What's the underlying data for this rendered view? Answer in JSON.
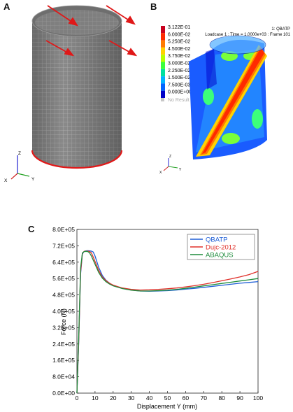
{
  "panels": {
    "a": {
      "letter": "A"
    },
    "b": {
      "letter": "B"
    },
    "c": {
      "letter": "C"
    }
  },
  "axes_triad": {
    "z": "Z",
    "x": "X",
    "y": "Y"
  },
  "contour": {
    "header_line1": "1: QBATP",
    "header_line2": "Loadcase 1 : Time = 1.0000e+03 : Frame 101",
    "levels": [
      "3.122E-01",
      "6.000E-02",
      "5.250E-02",
      "4.500E-02",
      "3.750E-02",
      "3.000E-02",
      "2.250E-02",
      "1.500E-02",
      "7.500E-03",
      "0.000E+00"
    ],
    "colors": [
      "#c8001e",
      "#ff2a00",
      "#ff7a00",
      "#ffd200",
      "#b8ff00",
      "#3cff3c",
      "#00e0a0",
      "#00b4ff",
      "#0064ff",
      "#0000c8"
    ],
    "no_result": "No Result"
  },
  "chart_data": {
    "type": "line",
    "xlabel": "Displacement Y (mm)",
    "ylabel": "Force (N)",
    "xlim": [
      0,
      100
    ],
    "ylim": [
      0,
      800000
    ],
    "x_ticks": [
      "0",
      "10",
      "20",
      "30",
      "40",
      "50",
      "60",
      "70",
      "80",
      "90",
      "100"
    ],
    "y_ticks": [
      "0.0E+00",
      "8.0E+04",
      "1.6E+05",
      "2.4E+05",
      "3.2E+05",
      "4.0E+05",
      "4.8E+05",
      "5.6E+05",
      "6.4E+05",
      "7.2E+05",
      "8.0E+05"
    ],
    "grid": false,
    "legend_position": "top-right",
    "series": [
      {
        "name": "QBATP",
        "color": "#1f5fd6",
        "x": [
          0,
          1,
          2,
          3,
          4,
          5,
          6,
          7,
          8,
          9,
          10,
          12,
          14,
          16,
          18,
          20,
          25,
          30,
          35,
          40,
          45,
          50,
          55,
          60,
          65,
          70,
          75,
          80,
          85,
          90,
          95,
          100
        ],
        "y": [
          0,
          250000,
          580000,
          680000,
          693000,
          695000,
          696000,
          695000,
          694000,
          690000,
          670000,
          615000,
          575000,
          552000,
          537000,
          527000,
          512000,
          504000,
          499000,
          498000,
          499000,
          501000,
          504000,
          508000,
          512000,
          517000,
          522000,
          527000,
          532000,
          537000,
          541000,
          545000
        ]
      },
      {
        "name": "Dujc-2012",
        "color": "#e0302a",
        "x": [
          0,
          1,
          2,
          3,
          4,
          5,
          6,
          7,
          8,
          9,
          10,
          12,
          14,
          16,
          18,
          20,
          25,
          30,
          35,
          40,
          45,
          50,
          55,
          60,
          65,
          70,
          75,
          80,
          85,
          90,
          95,
          100
        ],
        "y": [
          0,
          260000,
          590000,
          683000,
          693000,
          694000,
          694000,
          692000,
          685000,
          665000,
          643000,
          600000,
          568000,
          550000,
          537000,
          528000,
          514000,
          507000,
          504000,
          505000,
          507000,
          510000,
          514000,
          519000,
          525000,
          532000,
          540000,
          549000,
          558000,
          568000,
          579000,
          595000
        ]
      },
      {
        "name": "ABAQUS",
        "color": "#1e8c3c",
        "x": [
          0,
          1,
          2,
          3,
          4,
          5,
          6,
          7,
          8,
          9,
          10,
          12,
          14,
          16,
          18,
          20,
          25,
          30,
          35,
          40,
          45,
          50,
          55,
          60,
          65,
          70,
          75,
          80,
          85,
          90,
          95,
          100
        ],
        "y": [
          0,
          280000,
          610000,
          685000,
          692000,
          693000,
          692000,
          685000,
          670000,
          650000,
          630000,
          590000,
          562000,
          545000,
          533000,
          524000,
          511000,
          503000,
          499000,
          499000,
          501000,
          503000,
          507000,
          512000,
          518000,
          524000,
          530000,
          536000,
          542000,
          548000,
          554000,
          560000
        ]
      }
    ]
  }
}
